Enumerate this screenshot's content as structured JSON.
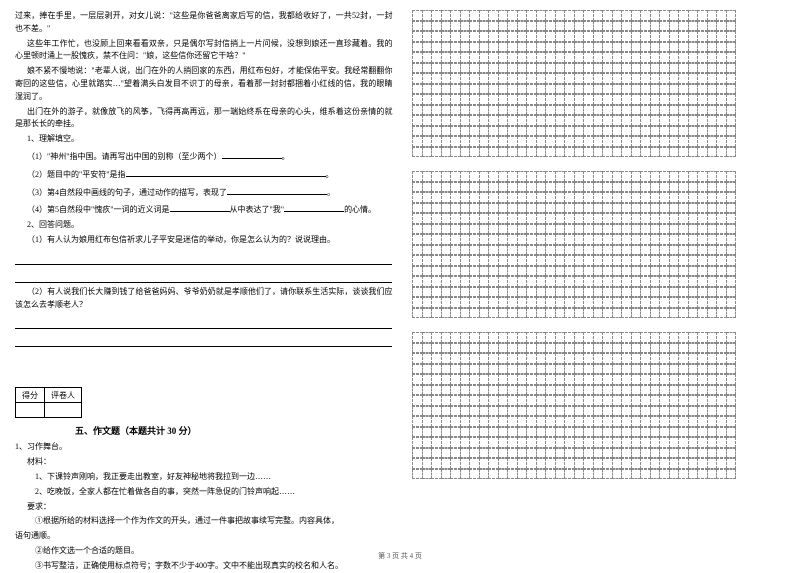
{
  "left": {
    "p1": "过来，捧在手里，一层层剥开，对女儿说：\"这些是你爸爸离家后写的信，我都给收好了，一共52封，一封也不差。\"",
    "p2": "这些年工作忙，也没顾上回来看看双亲，只是偶尔写封信捎上一片问候，没想到娘还一直珍藏着。我的心里顿时涌上一股愧疚，禁不住问：\"娘，这些信你还留它干啥？\"",
    "p3": "娘不紧不慢地说：\"老辈人说，出门在外的人捎回家的东西，用红布包好，才能保佑平安。我经常翻翻你寄回的这些信，心里就踏实…\"望着满头白发目不识丁的母亲，看着那一封封都捆着小红线的信，我的眼睛湿润了。",
    "p4": "出门在外的游子，就像放飞的风筝，飞得再高再远，那一端始终系在母亲的心头，维系着这份亲情的就是那长长的牵挂。",
    "q1_title": "1、理解填空。",
    "q1_1": "（1）\"神州\"指中国。请再写出中国的别称（至少两个）",
    "q1_2": "（2）题目中的\"平安符\"是指",
    "q1_3": "（3）第4自然段中画线的句子，通过动作的描写，表现了",
    "q1_4_a": "（4）第5自然段中\"愧疚\"一词的近义词是",
    "q1_4_b": "从中表达了\"我\"",
    "q1_4_c": "的心情。",
    "q2_title": "2、回答问题。",
    "q2_1": "（1）有人认为娘用红布包信祈求儿子平安是迷信的举动，你是怎么认为的？说说理由。",
    "q2_2": "（2）有人说我们长大赚到钱了给爸爸妈妈、爷爷奶奶就是孝顺他们了，请你联系生活实际，谈谈我们应该怎么去孝顺老人？",
    "score_h1": "得分",
    "score_h2": "评卷人",
    "section5": "五、作文题（本题共计 30 分）",
    "w_title": "1、习作舞台。",
    "w_mat": "材料：",
    "w_m1": "1、下课铃声刚响，我正要走出教室，好友神秘地将我拉到一边……",
    "w_m2": "2、吃晚饭，全家人都在忙着做各自的事，突然一阵急促的门铃声响起……",
    "w_req": "要求：",
    "w_r1": "①根据所给的材料选择一个作为作文的开头，通过一件事把故事续写完整。内容具体，",
    "w_r1b": "语句通顺。",
    "w_r2": "②给作文选一个合适的题目。",
    "w_r3": "③书写整洁，正确使用标点符号；字数不少于400字。文中不能出现真实的校名和人名。"
  },
  "footer": "第 3 页 共 4 页",
  "grid": {
    "cols": 34,
    "rows": 14,
    "blocks": 3
  }
}
